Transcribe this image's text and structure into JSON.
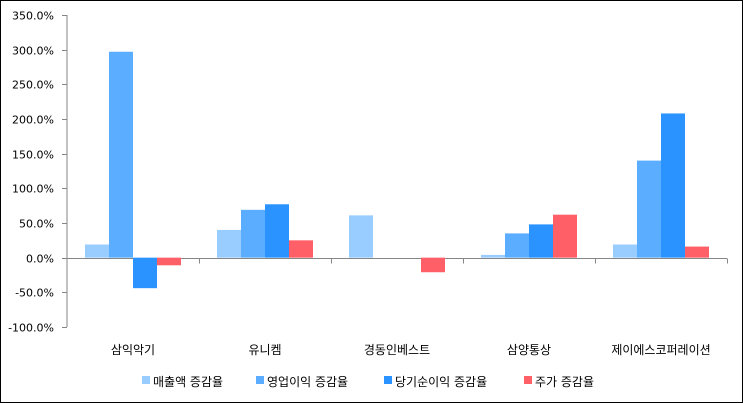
{
  "chart_data": {
    "type": "bar",
    "title": "",
    "xlabel": "",
    "ylabel": "",
    "ylim": [
      -100,
      350
    ],
    "ytick_step": 50,
    "ytick_format": "percent-1dp",
    "grid": false,
    "legend_position": "bottom",
    "categories": [
      "삼익악기",
      "유니켐",
      "경동인베스트",
      "삼양통상",
      "제이에스코퍼레이션"
    ],
    "series": [
      {
        "name": "매출액 증감율",
        "color": "#99CCFF",
        "values": [
          19,
          40,
          61,
          4,
          19
        ]
      },
      {
        "name": "영업이익 증감율",
        "color": "#5BAEFF",
        "values": [
          297,
          69,
          null,
          35,
          140
        ]
      },
      {
        "name": "당기순이익 증감율",
        "color": "#2A93FF",
        "values": [
          -44,
          77,
          null,
          48,
          208
        ]
      },
      {
        "name": "주가 증감율",
        "color": "#FF5F67",
        "values": [
          -11,
          25,
          -21,
          62,
          16
        ]
      }
    ]
  }
}
